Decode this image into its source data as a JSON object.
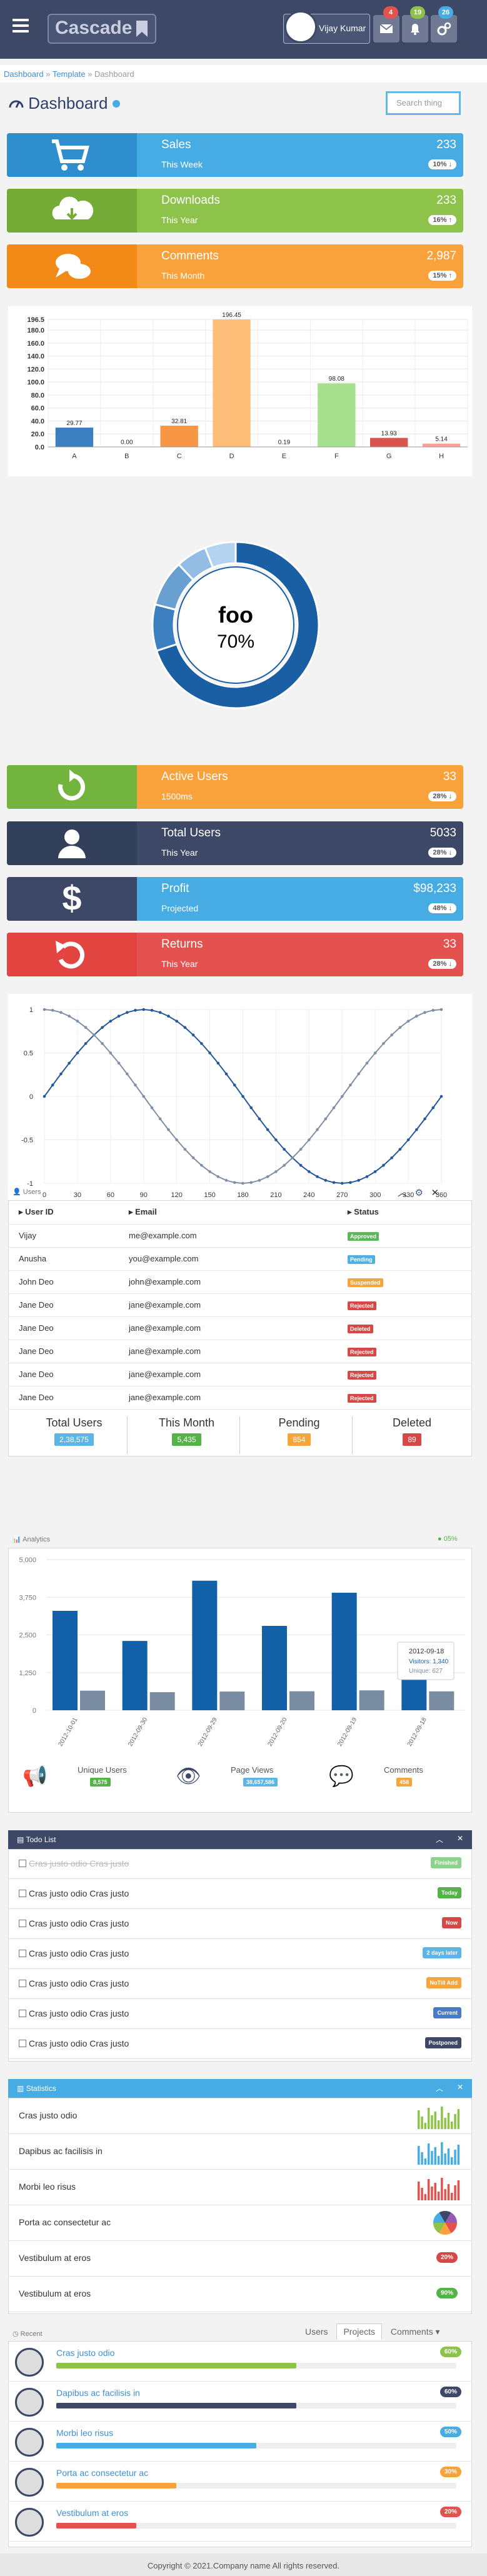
{
  "header": {
    "logo": "Cascade",
    "user_name": "Vijay Kumar",
    "badges": [
      "4",
      "19",
      "26"
    ]
  },
  "breadcrumb": [
    "Dashboard",
    "Template",
    "Dashboard"
  ],
  "page": {
    "title": "Dashboard",
    "search_placeholder": "Search thing"
  },
  "stats_top": [
    {
      "label": "Sales",
      "sub": "This Week",
      "value": "233",
      "pct": "10% ↓",
      "icon": "cart-icon",
      "color": "#47ace4",
      "icon_color": "#2f8fce"
    },
    {
      "label": "Downloads",
      "sub": "This Year",
      "value": "233",
      "pct": "16% ↑",
      "icon": "cloud-download-icon",
      "color": "#8dc34a",
      "icon_color": "#73ab36"
    },
    {
      "label": "Comments",
      "sub": "This Month",
      "value": "2,987",
      "pct": "15% ↑",
      "icon": "comments-icon",
      "color": "#f9a13b",
      "icon_color": "#f38916"
    }
  ],
  "chart_data": [
    {
      "type": "bar",
      "categories": [
        "A",
        "B",
        "C",
        "D",
        "E",
        "F",
        "G",
        "H"
      ],
      "values": [
        29.77,
        0.0,
        32.81,
        196.45,
        0.19,
        98.08,
        13.93,
        5.14
      ],
      "labels": [
        "29.77",
        "0.00",
        "32.81",
        "196.45",
        "0.19",
        "98.08",
        "13.93",
        "5.14"
      ],
      "colors": [
        "#3c7fc0",
        "#9b9b9b",
        "#f79645",
        "#ffbd7a",
        "#2e9e50",
        "#a7e08f",
        "#d9534f",
        "#ff9d97"
      ],
      "ylim": [
        0,
        196.5
      ],
      "yticks": [
        "196.5",
        "180.0",
        "160.0",
        "140.0",
        "120.0",
        "100.0",
        "80.0",
        "60.0",
        "40.0",
        "20.0",
        "0.0"
      ]
    },
    {
      "type": "pie",
      "title": "foo",
      "center_value": "70%",
      "values": [
        70,
        9,
        9,
        6,
        6
      ],
      "colors": [
        "#1a5fa4",
        "#3c7fc0",
        "#6a9fd1",
        "#93bde2",
        "#b3d3f0"
      ]
    },
    {
      "type": "line",
      "xticks": [
        "0",
        "30",
        "60",
        "90",
        "120",
        "150",
        "180",
        "210",
        "240",
        "270",
        "300",
        "330",
        "360"
      ],
      "yticks": [
        "1",
        "0.5",
        "0",
        "-0.5",
        "-1"
      ],
      "xlim": [
        0,
        360
      ],
      "ylim": [
        -1,
        1
      ],
      "series": [
        {
          "fn": "sin",
          "color": "#23599c"
        },
        {
          "fn": "cos",
          "color": "#7f8fa7"
        }
      ]
    },
    {
      "type": "bar",
      "title": "Analytics",
      "yticks": [
        "5,000",
        "3,750",
        "2,500",
        "1,250",
        "0"
      ],
      "ylim": [
        0,
        5000
      ],
      "categories": [
        "2012-10-01",
        "2012-09-30",
        "2012-09-29",
        "2012-09-20",
        "2012-09-19",
        "2012-09-18"
      ],
      "series": [
        {
          "name": "Visitors",
          "values": [
            3300,
            2300,
            4300,
            2800,
            3900,
            1340
          ],
          "color": "#1260a8"
        },
        {
          "name": "Unique",
          "values": [
            650,
            600,
            620,
            630,
            660,
            627
          ],
          "color": "#7a8ca1"
        }
      ],
      "tooltip": {
        "date": "2012-09-18",
        "visitors": "Visitors: 1,340",
        "unique": "Unique: 627"
      }
    }
  ],
  "stats_mid": [
    {
      "label": "Active Users",
      "sub": "1500ms",
      "value": "33",
      "pct": "28% ↓",
      "icon": "refresh-icon",
      "color": "#f9a13b",
      "icon_color": "#72b43d"
    },
    {
      "label": "Total Users",
      "sub": "This Year",
      "value": "5033",
      "pct": "28% ↓",
      "icon": "user-icon",
      "color": "#3d4766",
      "icon_color": "#33405c"
    },
    {
      "label": "Profit",
      "sub": "Projected",
      "value": "$98,233",
      "pct": "48% ↓",
      "icon": "dollar-icon",
      "color": "#47ace4",
      "icon_color": "#3d4766"
    },
    {
      "label": "Returns",
      "sub": "This Year",
      "value": "33",
      "pct": "28% ↓",
      "icon": "undo-icon",
      "color": "#e3524f",
      "icon_color": "#e2443f"
    }
  ],
  "users": {
    "title": "Users",
    "headers": [
      "User ID",
      "Email",
      "Status"
    ],
    "rows": [
      {
        "id": "Vijay",
        "email": "me@example.com",
        "status": "Approved",
        "color": "#57b957"
      },
      {
        "id": "Anusha",
        "email": "you@example.com",
        "status": "Pending",
        "color": "#52b0de"
      },
      {
        "id": "John Deo",
        "email": "john@example.com",
        "status": "Suspended",
        "color": "#f7a53a"
      },
      {
        "id": "Jane Deo",
        "email": "jane@example.com",
        "status": "Rejected",
        "color": "#d64846"
      },
      {
        "id": "Jane Deo",
        "email": "jane@example.com",
        "status": "Deleted",
        "color": "#d64846"
      },
      {
        "id": "Jane Deo",
        "email": "jane@example.com",
        "status": "Rejected",
        "color": "#d64846"
      },
      {
        "id": "Jane Deo",
        "email": "jane@example.com",
        "status": "Rejected",
        "color": "#d64846"
      },
      {
        "id": "Jane Deo",
        "email": "jane@example.com",
        "status": "Rejected",
        "color": "#d64846"
      }
    ],
    "summary": [
      {
        "label": "Total Users",
        "value": "2,38,575",
        "color": "#5bb5e5"
      },
      {
        "label": "This Month",
        "value": "5,435",
        "color": "#55b248"
      },
      {
        "label": "Pending",
        "value": "854",
        "color": "#f7a53a"
      },
      {
        "label": "Deleted",
        "value": "89",
        "color": "#d64846"
      }
    ]
  },
  "analytics": {
    "title": "Analytics",
    "badge": "● 05%",
    "footer": [
      {
        "label": "Unique Users",
        "value": "8,575",
        "color": "#55b248",
        "icon": "bullhorn-icon"
      },
      {
        "label": "Page Views",
        "value": "38,657,586",
        "color": "#5bb5e5",
        "icon": "eye-icon"
      },
      {
        "label": "Comments",
        "value": "458",
        "color": "#f7a53a",
        "icon": "comment-icon"
      }
    ]
  },
  "todo": {
    "title": "Todo List",
    "items": [
      {
        "text": "Cras justo odio Cras justo",
        "label": "Finished",
        "color": "#8bd38b",
        "done": true
      },
      {
        "text": "Cras justo odio Cras justo",
        "label": "Today",
        "color": "#55b248"
      },
      {
        "text": "Cras justo odio Cras justo",
        "label": "Now",
        "color": "#d64846"
      },
      {
        "text": "Cras justo odio Cras justo",
        "label": "2 days later",
        "color": "#5bb5e5"
      },
      {
        "text": "Cras justo odio Cras justo",
        "label": "NoTill Add",
        "color": "#f7a53a"
      },
      {
        "text": "Cras justo odio Cras justo",
        "label": "Current",
        "color": "#4a79c7"
      },
      {
        "text": "Cras justo odio Cras justo",
        "label": "Postponed",
        "color": "#3d4766"
      }
    ]
  },
  "statistics": {
    "title": "Statistics",
    "items": [
      {
        "text": "Cras justo odio",
        "kind": "bars",
        "color": "#8dc34a"
      },
      {
        "text": "Dapibus ac facilisis in",
        "kind": "bars",
        "color": "#47ace4"
      },
      {
        "text": "Morbi leo risus",
        "kind": "bars",
        "color": "#e3524f"
      },
      {
        "text": "Porta ac consectetur ac",
        "kind": "pie"
      },
      {
        "text": "Vestibulum at eros",
        "kind": "badge",
        "value": "20%",
        "color": "#d64846"
      },
      {
        "text": "Vestibulum at eros",
        "kind": "badge",
        "value": "90%",
        "color": "#55b248"
      }
    ]
  },
  "recent": {
    "title": "Recent",
    "tabs": [
      "Users",
      "Projects",
      "Comments ▾"
    ],
    "items": [
      {
        "text": "Cras justo odio",
        "pct": "60%",
        "value": 0.6,
        "color": "#8dc34a"
      },
      {
        "text": "Dapibus ac facilisis in",
        "pct": "60%",
        "value": 0.6,
        "color": "#3d4766"
      },
      {
        "text": "Morbi leo risus",
        "pct": "50%",
        "value": 0.5,
        "color": "#47ace4"
      },
      {
        "text": "Porta ac consectetur ac",
        "pct": "30%",
        "value": 0.3,
        "color": "#f9a13b"
      },
      {
        "text": "Vestibulum at eros",
        "pct": "20%",
        "value": 0.2,
        "color": "#e3524f"
      }
    ]
  },
  "footer": "Copyright © 2021.Company name All rights reserved."
}
